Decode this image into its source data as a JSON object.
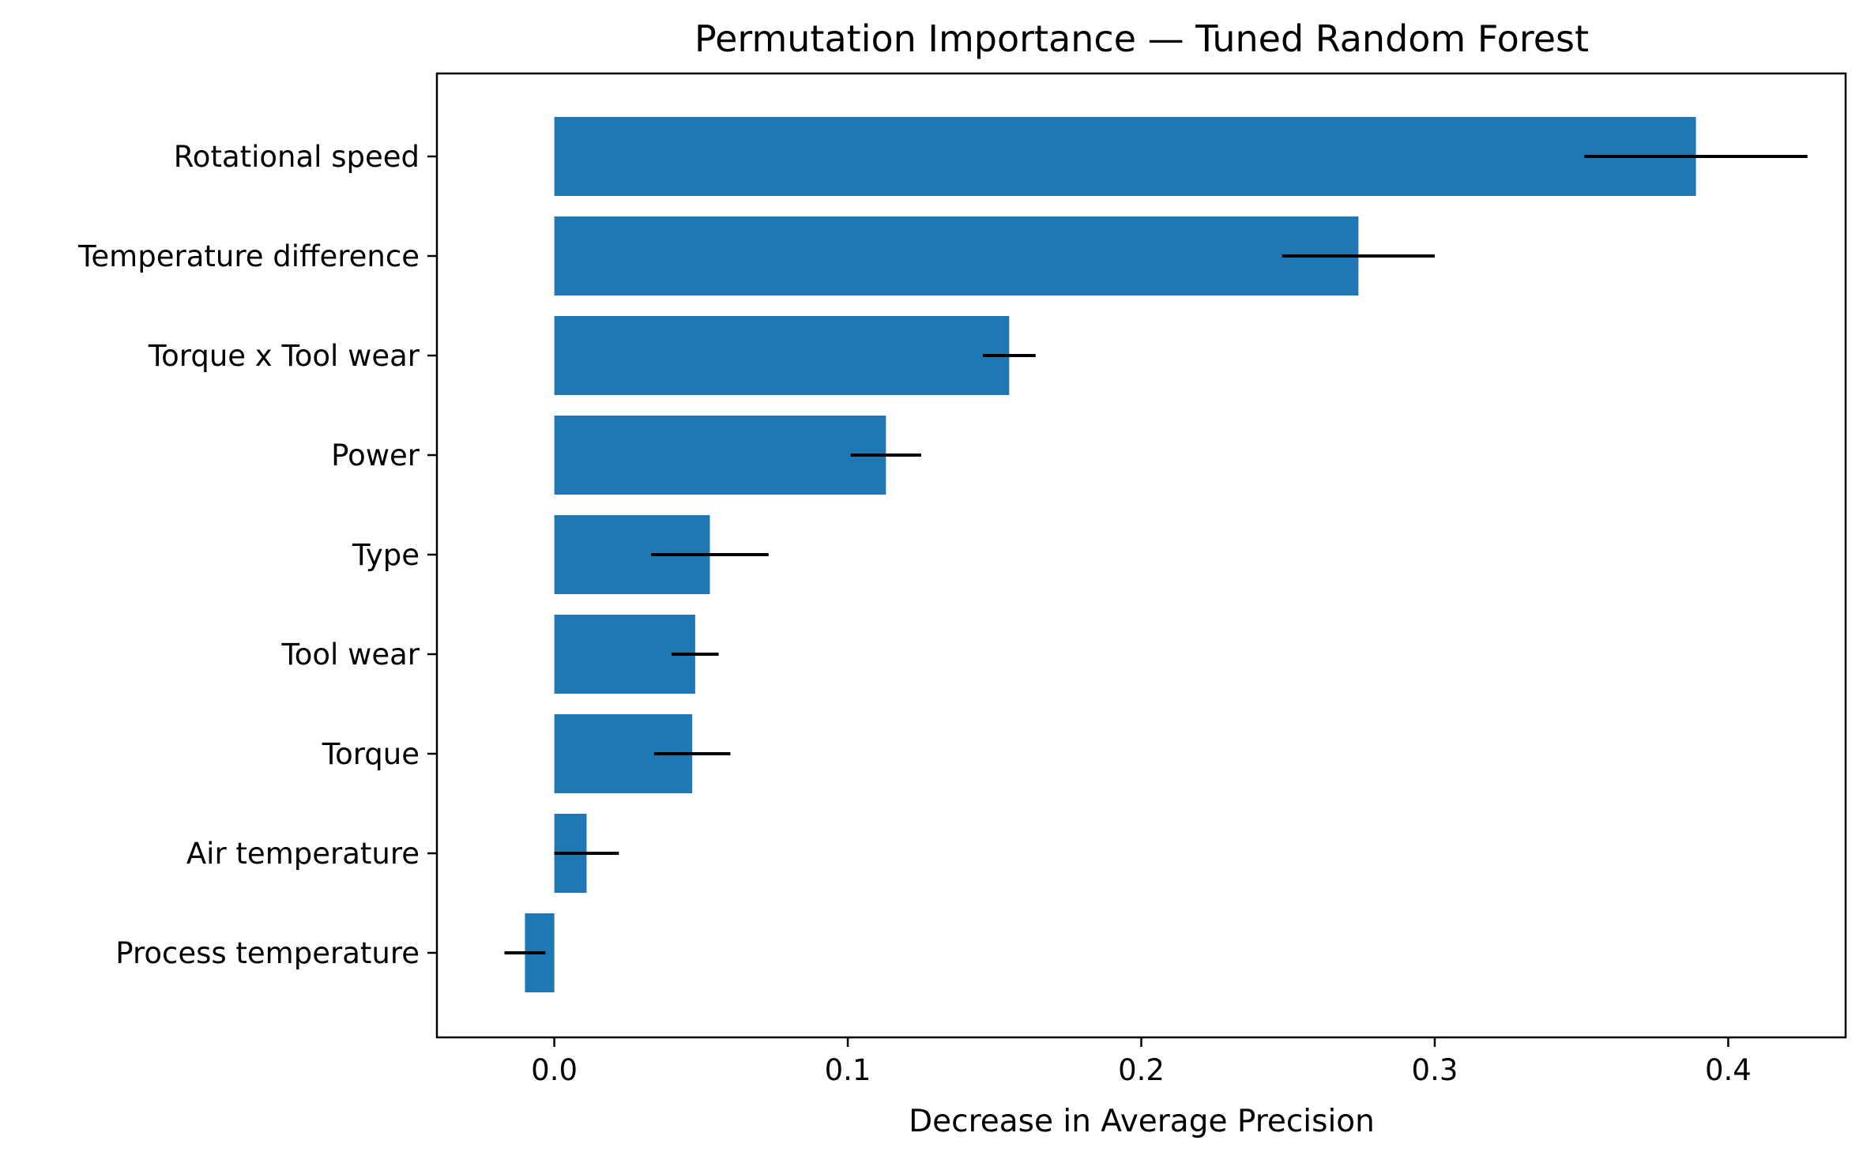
{
  "chart_data": {
    "type": "bar",
    "orientation": "horizontal",
    "title": "Permutation Importance — Tuned Random Forest",
    "xlabel": "Decrease in Average Precision",
    "ylabel": "",
    "xlim": [
      -0.04,
      0.44
    ],
    "xticks": [
      0.0,
      0.1,
      0.2,
      0.3,
      0.4
    ],
    "xtick_labels": [
      "0.0",
      "0.1",
      "0.2",
      "0.3",
      "0.4"
    ],
    "grid": false,
    "legend": "none",
    "bar_color": "#1f77b4",
    "errorbar_color": "#000000",
    "categories": [
      "Rotational speed",
      "Temperature difference",
      "Torque x Tool wear",
      "Power",
      "Type",
      "Tool wear",
      "Torque",
      "Air temperature",
      "Process temperature"
    ],
    "values": [
      0.389,
      0.274,
      0.155,
      0.113,
      0.053,
      0.048,
      0.047,
      0.011,
      -0.01
    ],
    "errors": [
      0.038,
      0.026,
      0.009,
      0.012,
      0.02,
      0.008,
      0.013,
      0.011,
      0.007
    ]
  }
}
